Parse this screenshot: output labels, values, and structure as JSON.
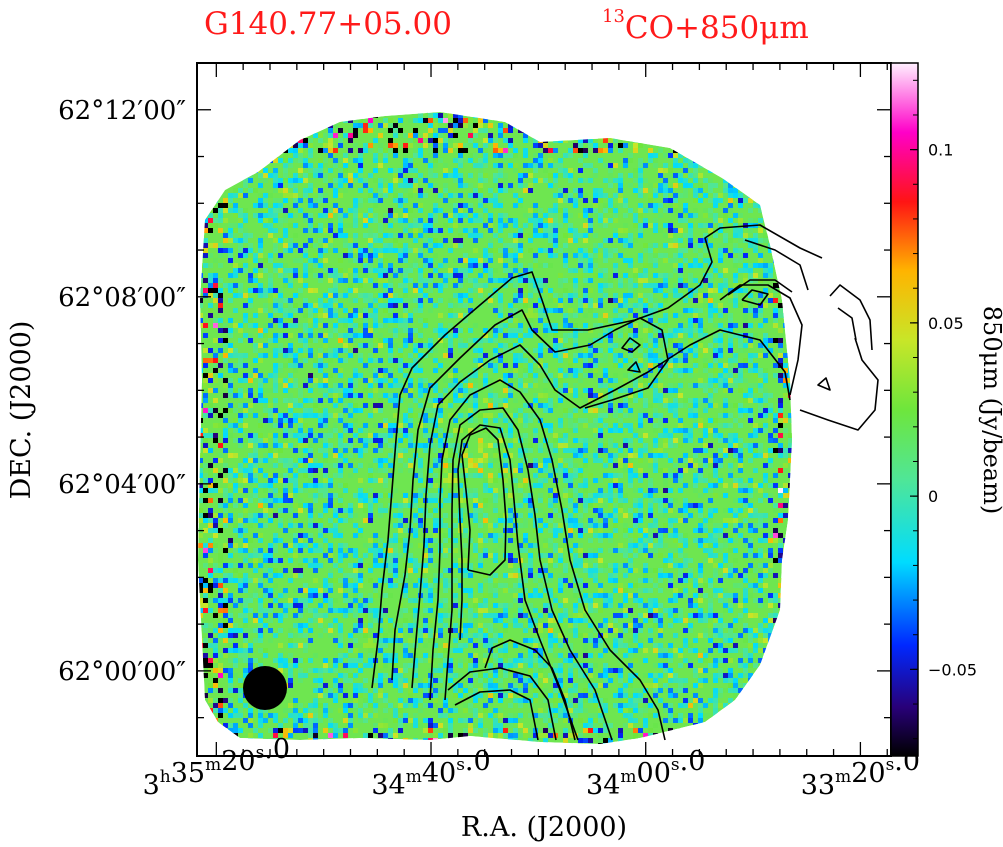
{
  "chart_data": {
    "type": "heatmap",
    "title_source": "G140.77+05.00",
    "title_tracer_iso": "13",
    "title_tracer_rest": "CO+850μm",
    "xlabel": "R.A.  (J2000)",
    "ylabel": "DEC.  (J2000)",
    "x_ticks": [
      {
        "h": "3",
        "m": "35",
        "s": "20",
        "frac": "0"
      },
      {
        "h": "",
        "m": "34",
        "s": "40",
        "frac": "0"
      },
      {
        "h": "",
        "m": "34",
        "s": "00",
        "frac": "0"
      },
      {
        "h": "",
        "m": "33",
        "s": "20",
        "frac": "0"
      }
    ],
    "x_ticks_sec": [
      215,
      175,
      135,
      95
    ],
    "xlim_sec": [
      218.6,
      89.3
    ],
    "y_ticks": [
      "62°12′00″",
      "62°08′00″",
      "62°04′00″",
      "62°00′00″"
    ],
    "y_ticks_arcmin": [
      12,
      8,
      4,
      0
    ],
    "ylim_arcmin": [
      -1.82,
      13.0
    ],
    "colorbar": {
      "label": "850μm  (Jy/beam)",
      "ticks": [
        "0.1",
        "0.05",
        "0",
        "−0.05"
      ],
      "tick_values": [
        0.1,
        0.05,
        0,
        -0.05
      ],
      "range": [
        -0.075,
        0.125
      ]
    },
    "map_description": "850 micron continuum map (noise-dominated, values near 0 Jy/beam) overlaid with 13CO integrated intensity contours",
    "colors": {
      "title": "#ff1a1a",
      "map_dominant": "#5de07a",
      "contour": "#000000"
    }
  }
}
